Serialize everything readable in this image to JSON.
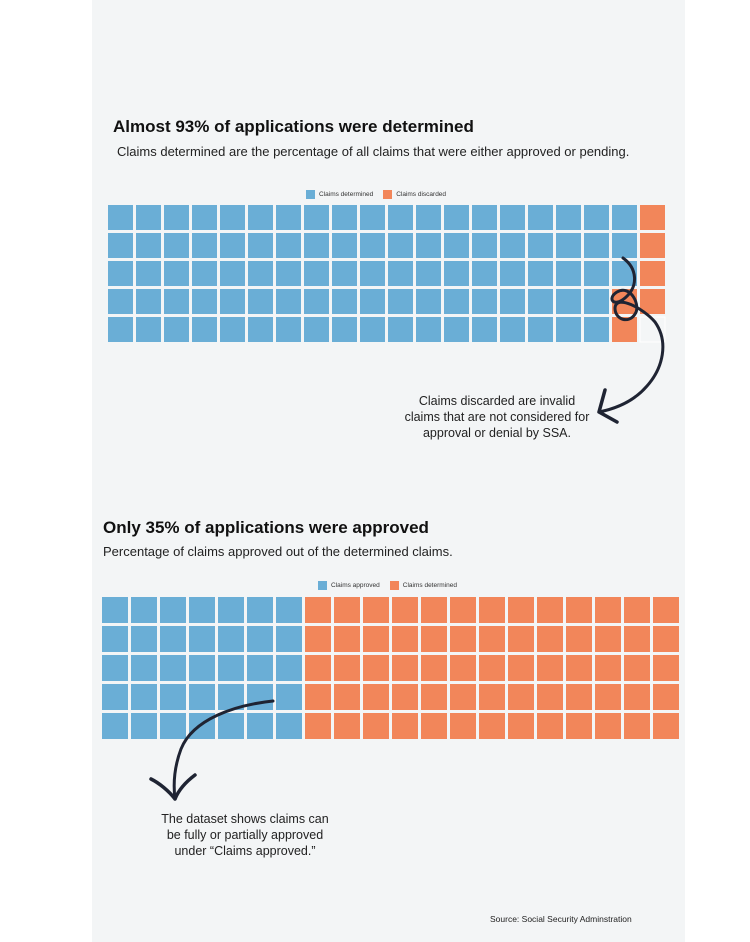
{
  "colors": {
    "blue": "#6aaed6",
    "orange": "#f2865a",
    "empty": "#f4f6f7",
    "background": "#f3f5f6"
  },
  "chart_data": [
    {
      "type": "waffle",
      "title": "Almost 93% of applications were determined",
      "subtitle": "Claims determined are the percentage of all claims that were either approved or pending.",
      "legend": [
        {
          "label": "Claims determined",
          "color": "#6aaed6"
        },
        {
          "label": "Claims discarded",
          "color": "#f2865a"
        }
      ],
      "grid": {
        "rows": 5,
        "cols": 20
      },
      "series": [
        {
          "name": "Claims determined",
          "values": [
            93
          ]
        },
        {
          "name": "Claims discarded",
          "values": [
            6
          ]
        }
      ],
      "annotation": "Claims discarded are invalid claims that are not considered for approval or denial by SSA."
    },
    {
      "type": "waffle",
      "title": "Only 35% of applications were approved",
      "subtitle": "Percentage of claims approved out of the determined claims.",
      "legend": [
        {
          "label": "Claims approved",
          "color": "#6aaed6"
        },
        {
          "label": "Claims determined",
          "color": "#f2865a"
        }
      ],
      "grid": {
        "rows": 5,
        "cols": 20
      },
      "series": [
        {
          "name": "Claims approved",
          "values": [
            35
          ]
        },
        {
          "name": "Claims determined",
          "values": [
            65
          ]
        }
      ],
      "annotation": "The dataset shows claims can be fully or partially approved under “Claims approved.”"
    }
  ],
  "source": "Source: Social Security Adminstration"
}
